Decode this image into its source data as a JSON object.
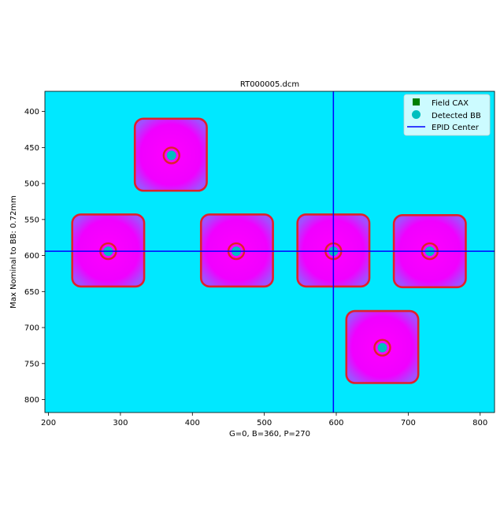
{
  "chart_data": {
    "type": "heatmap",
    "title": "RT000005.dcm",
    "xlabel": "G=0, B=360, P=270",
    "ylabel": "Max Nominal to BB: 0.72mm",
    "xlim": [
      195,
      820
    ],
    "ylim": [
      818,
      372
    ],
    "y_inverted": true,
    "xticks": [
      200,
      300,
      400,
      500,
      600,
      700,
      800
    ],
    "yticks": [
      400,
      450,
      500,
      550,
      600,
      650,
      700,
      750,
      800
    ],
    "background_color": "#00e8ff",
    "field_color": "#ff00ff",
    "contour_color": "#e0202a",
    "epid_center": {
      "x": 596,
      "y": 594
    },
    "fields": [
      {
        "cx": 370,
        "cy": 460,
        "half": 50
      },
      {
        "cx": 283,
        "cy": 593,
        "half": 50
      },
      {
        "cx": 462,
        "cy": 593,
        "half": 50
      },
      {
        "cx": 596,
        "cy": 593,
        "half": 50
      },
      {
        "cx": 730,
        "cy": 594,
        "half": 50
      },
      {
        "cx": 664,
        "cy": 727,
        "half": 50
      }
    ],
    "detected_bbs": [
      {
        "x": 371,
        "y": 461
      },
      {
        "x": 283,
        "y": 594
      },
      {
        "x": 461,
        "y": 594
      },
      {
        "x": 596,
        "y": 594
      },
      {
        "x": 730,
        "y": 594
      },
      {
        "x": 664,
        "y": 728
      }
    ],
    "legend": {
      "placement": "top-right",
      "entries": [
        {
          "label": "Field CAX",
          "marker": "square",
          "color": "#007f00"
        },
        {
          "label": "Detected BB",
          "marker": "circle",
          "color": "#00bfbf"
        },
        {
          "label": "EPID Center",
          "marker": "line",
          "color": "#0000ff"
        }
      ]
    }
  }
}
